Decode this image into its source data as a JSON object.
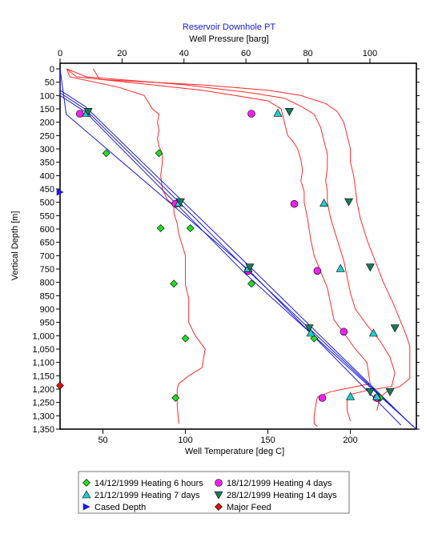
{
  "chart_data": {
    "type": "line",
    "title": "Reservoir Downhole PT",
    "top_axis": {
      "label": "Well Pressure [barg]",
      "range": [
        0,
        115
      ],
      "ticks": [
        0,
        20,
        40,
        60,
        80,
        100
      ]
    },
    "bottom_axis": {
      "label": "Well Temperature [deg C]",
      "range": [
        24,
        240
      ],
      "ticks": [
        50,
        100,
        150,
        200
      ]
    },
    "y_axis": {
      "label": "Vertical Depth [m]",
      "range": [
        0,
        1350
      ],
      "inverted": true,
      "ticks": [
        0,
        50,
        100,
        150,
        200,
        250,
        300,
        350,
        400,
        450,
        500,
        550,
        600,
        650,
        700,
        750,
        800,
        850,
        900,
        950,
        1000,
        1050,
        1100,
        1150,
        1200,
        1250,
        1300,
        1350
      ],
      "tick_labels": [
        "0",
        "50",
        "100",
        "150",
        "200",
        "250",
        "300",
        "350",
        "400",
        "450",
        "500",
        "550",
        "600",
        "650",
        "700",
        "750",
        "800",
        "850",
        "900",
        "950",
        "1,000",
        "1,050",
        "1,100",
        "1,150",
        "1,200",
        "1,250",
        "1,300",
        "1,350"
      ]
    },
    "grid": false,
    "legend_position": "bottom",
    "colors": {
      "pressure": "#1a1adc",
      "temperature": "#ff2a2a",
      "diamond": "#22dd22",
      "circle": "#ee22ee",
      "triangle_up": "#22cccc",
      "triangle_down": "#1a7a5a",
      "cased": "#1a1adc",
      "feed": "#dd1111"
    },
    "pressure_series": [
      {
        "x": [
          0,
          0,
          8,
          60,
          115
        ],
        "y": [
          0,
          100,
          160,
          770,
          1350
        ]
      },
      {
        "x": [
          0,
          0,
          8,
          61,
          114
        ],
        "y": [
          0,
          90,
          150,
          760,
          1340
        ]
      },
      {
        "x": [
          0,
          0,
          8,
          62,
          113
        ],
        "y": [
          0,
          80,
          140,
          750,
          1330
        ]
      },
      {
        "x": [
          0,
          2,
          61,
          110
        ],
        "y": [
          0,
          170,
          755,
          1335
        ]
      }
    ],
    "temperature_series": [
      {
        "x": [
          28,
          30,
          60,
          75,
          80,
          84,
          83,
          84,
          83,
          84,
          86,
          86,
          85,
          86,
          89,
          93,
          93,
          95,
          96,
          98,
          100,
          100,
          100,
          102,
          102,
          102,
          106,
          112,
          110,
          102,
          96,
          95,
          95,
          96
        ],
        "y": [
          0,
          30,
          70,
          100,
          150,
          170,
          200,
          230,
          260,
          290,
          320,
          350,
          400,
          450,
          490,
          510,
          540,
          580,
          620,
          660,
          700,
          760,
          810,
          860,
          910,
          950,
          1000,
          1050,
          1120,
          1150,
          1180,
          1200,
          1260,
          1330
        ]
      },
      {
        "x": [
          28,
          34,
          80,
          110,
          130,
          150,
          158,
          160,
          162,
          165,
          168,
          170,
          171,
          170,
          172,
          172,
          174,
          176,
          178,
          182,
          186,
          188,
          190,
          196,
          203,
          210,
          212,
          200,
          188,
          180,
          179,
          178,
          178,
          180
        ],
        "y": [
          0,
          30,
          60,
          80,
          100,
          120,
          150,
          200,
          250,
          270,
          300,
          340,
          380,
          420,
          460,
          500,
          560,
          640,
          700,
          760,
          820,
          880,
          940,
          990,
          1050,
          1100,
          1180,
          1195,
          1210,
          1230,
          1260,
          1300,
          1330,
          1340
        ]
      },
      {
        "x": [
          28,
          40,
          100,
          140,
          160,
          170,
          178,
          182,
          184,
          186,
          186,
          185,
          186,
          186,
          188,
          192,
          196,
          198,
          200,
          203,
          210,
          218,
          224,
          227,
          225,
          210,
          200,
          198,
          198,
          200
        ],
        "y": [
          0,
          30,
          60,
          90,
          110,
          140,
          170,
          220,
          270,
          320,
          370,
          420,
          460,
          500,
          560,
          640,
          720,
          780,
          840,
          900,
          960,
          1020,
          1080,
          1140,
          1190,
          1205,
          1220,
          1240,
          1280,
          1320
        ]
      },
      {
        "x": [
          44,
          48,
          110,
          150,
          170,
          185,
          192,
          196,
          198,
          200,
          200,
          202,
          203,
          204,
          206,
          210,
          215,
          220,
          226,
          230,
          234,
          236,
          236,
          236,
          230,
          225,
          222,
          218,
          216
        ],
        "y": [
          0,
          40,
          60,
          80,
          100,
          130,
          160,
          200,
          250,
          300,
          350,
          400,
          450,
          500,
          560,
          640,
          720,
          800,
          880,
          940,
          1000,
          1040,
          1100,
          1160,
          1190,
          1200,
          1210,
          1230,
          1280
        ]
      }
    ],
    "marker_series": [
      {
        "name": "14/12/1999 Heating 6 hours",
        "marker": "diamond",
        "points": [
          {
            "x": 52,
            "y": 316
          },
          {
            "x": 84,
            "y": 316
          },
          {
            "x": 85,
            "y": 597
          },
          {
            "x": 103,
            "y": 597
          },
          {
            "x": 93,
            "y": 805
          },
          {
            "x": 140,
            "y": 805
          },
          {
            "x": 100,
            "y": 1010
          },
          {
            "x": 178,
            "y": 1010
          },
          {
            "x": 94,
            "y": 1233
          },
          {
            "x": 218,
            "y": 1233
          }
        ]
      },
      {
        "name": "18/12/1999 Heating 4 days",
        "marker": "circle",
        "points": [
          {
            "x": 36,
            "y": 168
          },
          {
            "x": 140,
            "y": 168
          },
          {
            "x": 94,
            "y": 506
          },
          {
            "x": 166,
            "y": 506
          },
          {
            "x": 138,
            "y": 757
          },
          {
            "x": 180,
            "y": 757
          },
          {
            "x": 196,
            "y": 985
          },
          {
            "x": 183,
            "y": 1233
          },
          {
            "x": 216,
            "y": 1233
          }
        ]
      },
      {
        "name": "21/12/1999 Heating 7 days",
        "marker": "triangle_up",
        "points": [
          {
            "x": 40,
            "y": 166
          },
          {
            "x": 156,
            "y": 166
          },
          {
            "x": 96,
            "y": 503
          },
          {
            "x": 184,
            "y": 503
          },
          {
            "x": 138,
            "y": 748
          },
          {
            "x": 194,
            "y": 748
          },
          {
            "x": 176,
            "y": 990
          },
          {
            "x": 214,
            "y": 990
          },
          {
            "x": 200,
            "y": 1228
          },
          {
            "x": 216,
            "y": 1228
          }
        ]
      },
      {
        "name": "28/12/1999 Heating 14 days",
        "marker": "triangle_down",
        "points": [
          {
            "x": 41,
            "y": 160
          },
          {
            "x": 163,
            "y": 160
          },
          {
            "x": 97,
            "y": 498
          },
          {
            "x": 199,
            "y": 498
          },
          {
            "x": 139,
            "y": 743
          },
          {
            "x": 212,
            "y": 743
          },
          {
            "x": 175,
            "y": 971
          },
          {
            "x": 227,
            "y": 971
          },
          {
            "x": 212,
            "y": 1210
          },
          {
            "x": 224,
            "y": 1210
          }
        ]
      },
      {
        "name": "Cased Depth",
        "marker": "arrow",
        "points": [
          {
            "x": 24,
            "y": 462
          }
        ]
      },
      {
        "name": "Major Feed",
        "marker": "feed",
        "points": [
          {
            "x": 24,
            "y": 1187
          }
        ]
      }
    ]
  }
}
